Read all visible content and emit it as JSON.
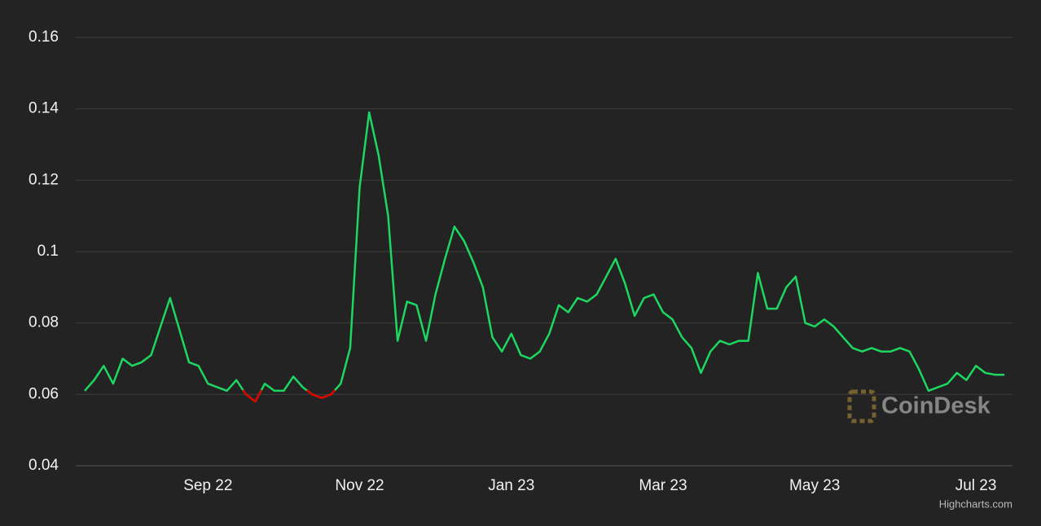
{
  "chart_data": {
    "type": "line",
    "watermark": "CoinDesk",
    "credits": "Highcharts.com",
    "categories": [
      null,
      null,
      null,
      null,
      null,
      null,
      null,
      null,
      null,
      null,
      null,
      null,
      null,
      "Sep 22",
      null,
      null,
      null,
      null,
      null,
      null,
      null,
      null,
      null,
      null,
      null,
      null,
      null,
      null,
      null,
      "Nov 22",
      null,
      null,
      null,
      null,
      null,
      null,
      null,
      null,
      null,
      null,
      null,
      null,
      null,
      null,
      null,
      "Jan 23",
      null,
      null,
      null,
      null,
      null,
      null,
      null,
      null,
      null,
      null,
      null,
      null,
      null,
      null,
      null,
      "Mar 23",
      null,
      null,
      null,
      null,
      null,
      null,
      null,
      null,
      null,
      null,
      null,
      null,
      null,
      null,
      null,
      "May 23",
      null,
      null,
      null,
      null,
      null,
      null,
      null,
      null,
      null,
      null,
      null,
      null,
      null,
      null,
      null,
      null,
      "Jul 23",
      null,
      null,
      null
    ],
    "series": [
      {
        "color": "#1ed760",
        "negative_color": "#e00000",
        "threshold": 0.061,
        "values": [
          0.061,
          0.064,
          0.068,
          0.063,
          0.07,
          0.068,
          0.069,
          0.071,
          0.079,
          0.087,
          0.078,
          0.069,
          0.068,
          0.063,
          0.062,
          0.061,
          0.064,
          0.06,
          0.058,
          0.063,
          0.061,
          0.061,
          0.065,
          0.062,
          0.06,
          0.059,
          0.06,
          0.063,
          0.073,
          0.118,
          0.139,
          0.127,
          0.11,
          0.075,
          0.086,
          0.085,
          0.075,
          0.088,
          0.098,
          0.107,
          0.103,
          0.097,
          0.09,
          0.076,
          0.072,
          0.077,
          0.071,
          0.07,
          0.072,
          0.077,
          0.085,
          0.083,
          0.087,
          0.086,
          0.088,
          0.093,
          0.098,
          0.091,
          0.082,
          0.087,
          0.088,
          0.083,
          0.081,
          0.076,
          0.073,
          0.066,
          0.072,
          0.075,
          0.074,
          0.075,
          0.075,
          0.094,
          0.084,
          0.084,
          0.09,
          0.093,
          0.08,
          0.079,
          0.081,
          0.079,
          0.076,
          0.073,
          0.072,
          0.073,
          0.072,
          0.072,
          0.073,
          0.072,
          0.067,
          0.061,
          0.062,
          0.063,
          0.066,
          0.064,
          0.068,
          0.066,
          0.0655,
          0.0655
        ]
      }
    ],
    "ylim": [
      0.04,
      0.16
    ],
    "yticks": [
      0.04,
      0.06,
      0.08,
      0.1,
      0.12,
      0.14,
      0.16
    ],
    "grid": true
  }
}
